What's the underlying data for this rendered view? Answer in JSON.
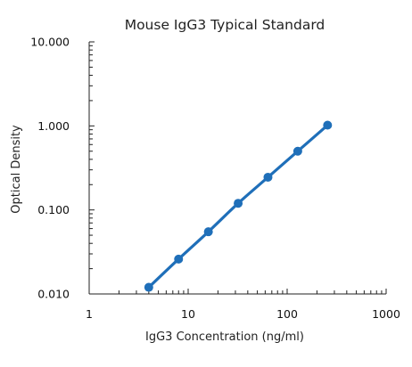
{
  "chart_data": {
    "type": "line",
    "title": "Mouse IgG3 Typical Standard",
    "xlabel": "IgG3 Concentration (ng/ml)",
    "ylabel": "Optical Density",
    "x_scale": "log",
    "y_scale": "log",
    "xlim": [
      1,
      1000
    ],
    "ylim": [
      0.01,
      10
    ],
    "x_tick_labels": [
      "1",
      "10",
      "100",
      "1000"
    ],
    "y_tick_labels": [
      "0.010",
      "0.100",
      "1.000",
      "10.000"
    ],
    "grid": false,
    "legend": "none",
    "series": [
      {
        "x": [
          4,
          8,
          16,
          32,
          64,
          128,
          256
        ],
        "y": [
          0.012,
          0.026,
          0.055,
          0.12,
          0.245,
          0.5,
          1.02
        ],
        "color": "#1f6fb9"
      }
    ]
  }
}
